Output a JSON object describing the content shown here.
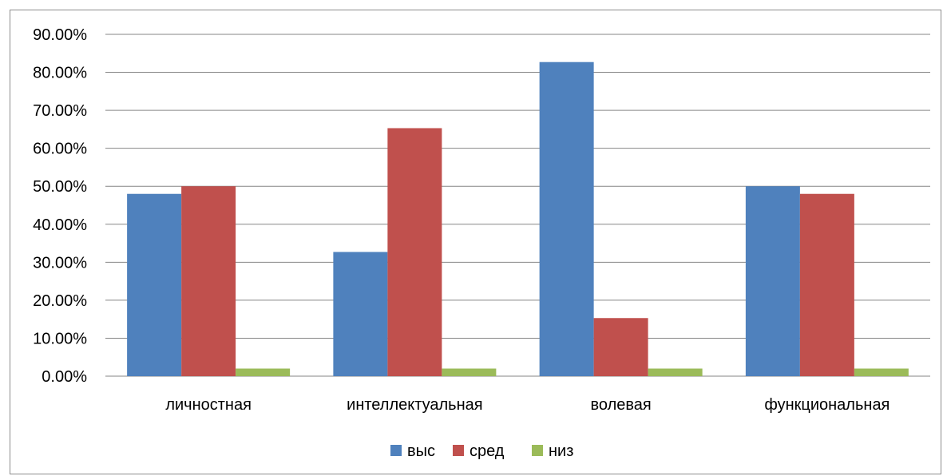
{
  "chart_data": {
    "type": "bar",
    "title": "",
    "xlabel": "",
    "ylabel": "",
    "categories": [
      "личностная",
      "интеллектуальная",
      "волевая",
      "функциональная"
    ],
    "series": [
      {
        "name": "выс",
        "color": "#4f81bd",
        "values": [
          48.0,
          32.7,
          82.7,
          50.0
        ]
      },
      {
        "name": "сред",
        "color": "#c0504d",
        "values": [
          50.0,
          65.3,
          15.3,
          48.0
        ]
      },
      {
        "name": "низ",
        "color": "#9bbb59",
        "values": [
          2.0,
          2.0,
          2.0,
          2.0
        ]
      }
    ],
    "ylim": [
      0,
      90
    ],
    "yticks": [
      0,
      10,
      20,
      30,
      40,
      50,
      60,
      70,
      80,
      90
    ],
    "ytick_labels": [
      "0.00%",
      "10.00%",
      "20.00%",
      "30.00%",
      "40.00%",
      "50.00%",
      "60.00%",
      "70.00%",
      "80.00%",
      "90.00%"
    ],
    "grid": true,
    "legend_position": "bottom"
  }
}
